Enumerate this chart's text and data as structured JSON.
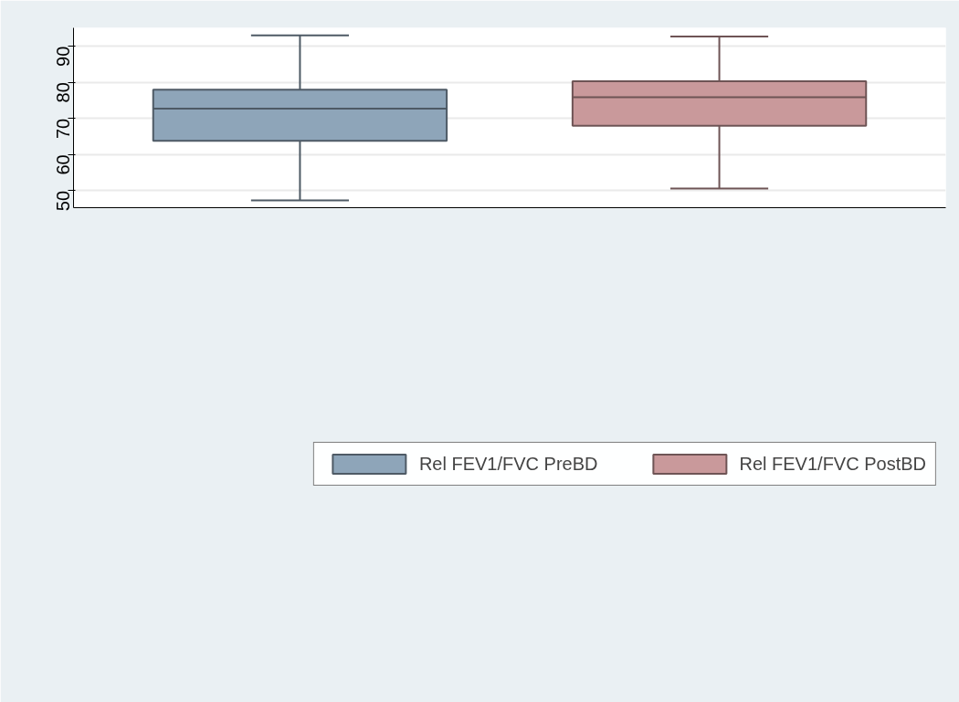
{
  "chart_data": {
    "type": "box",
    "categories": [
      null
    ],
    "series": [
      {
        "name": "Rel FEV1/FVC PreBD",
        "color": "#8ea5b9",
        "boxes": [
          {
            "low": 47.3,
            "q1": 63.8,
            "median": 72.7,
            "q3": 78.0,
            "high": 93.0
          }
        ]
      },
      {
        "name": "Rel FEV1/FVC PostBD",
        "color": "#c9999b",
        "boxes": [
          {
            "low": 50.6,
            "q1": 68.0,
            "median": 75.9,
            "q3": 80.3,
            "high": 92.7
          }
        ]
      }
    ],
    "ylim": [
      45.3,
      95.1
    ],
    "yticks": [
      50,
      60,
      70,
      80,
      90
    ],
    "grid": "y",
    "legend": "bottom",
    "tick_labels": "y"
  }
}
